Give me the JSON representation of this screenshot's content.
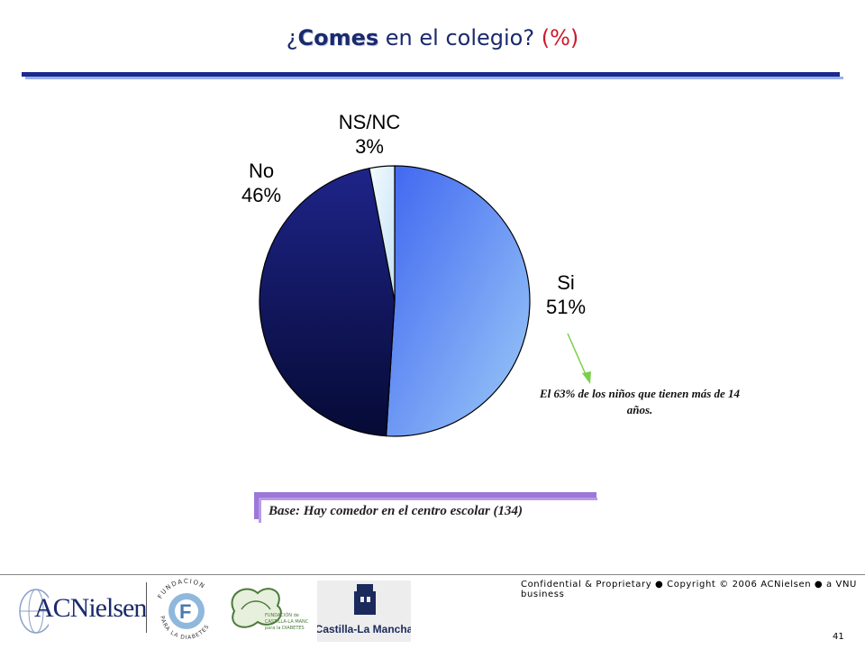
{
  "header": {
    "title_open": "¿",
    "title_bold": "Comes",
    "title_rest": " en el colegio?",
    "title_pct": "(%)"
  },
  "chart_data": {
    "type": "pie",
    "title": "¿Comes en el colegio? (%)",
    "slices": [
      {
        "label": "Si",
        "value": 51,
        "value_text": "51%",
        "color": "#6f9bf0"
      },
      {
        "label": "No",
        "value": 46,
        "value_text": "46%",
        "color": "#0e1459"
      },
      {
        "label": "NS/NC",
        "value": 3,
        "value_text": "3%",
        "color": "#d9ecf8"
      }
    ],
    "start": "12 o'clock, clockwise",
    "annotation": "El 63% de los niños que tienen más de 14 años."
  },
  "base_note": "Base: Hay comedor en el centro escolar (134)",
  "footer": {
    "copyright": "Confidential & Proprietary ● Copyright © 2006 ACNielsen ● a VNU business",
    "page_number": "41",
    "logos": {
      "acnielsen": "ACNielsen",
      "fundacion_circle": "FUNDACION PARA LA DIABETES",
      "fundacion_clm": "FUNDACIÓN de CASTILLA-LA MANCHA para la DIABETES",
      "castilla": "Castilla-La Mancha"
    }
  }
}
